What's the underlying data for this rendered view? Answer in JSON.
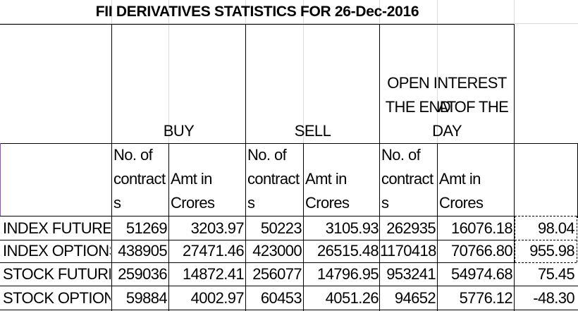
{
  "title": "FII DERIVATIVES STATISTICS FOR 26-Dec-2016",
  "groups": {
    "buy": "BUY",
    "sell": "SELL",
    "oi_line1": "OPEN INTEREST AT",
    "oi_line2": "THE END OF THE",
    "oi_line3": "DAY"
  },
  "subheaders": {
    "contracts_line1": "No. of",
    "contracts_line2": "contract",
    "contracts_line3": "s",
    "amt_line1": "Amt in",
    "amt_line2": "Crores"
  },
  "rows": [
    {
      "label": "INDEX FUTURES",
      "buy_contracts": "51269",
      "buy_amt": "3203.97",
      "sell_contracts": "50223",
      "sell_amt": "3105.93",
      "oi_contracts": "262935",
      "oi_amt": "16076.18",
      "net": "98.04"
    },
    {
      "label": "INDEX OPTIONS",
      "buy_contracts": "438905",
      "buy_amt": "27471.46",
      "sell_contracts": "423000",
      "sell_amt": "26515.48",
      "oi_contracts": "1170418",
      "oi_amt": "70766.80",
      "net": "955.98"
    },
    {
      "label": "STOCK FUTURES",
      "buy_contracts": "259036",
      "buy_amt": "14872.41",
      "sell_contracts": "256077",
      "sell_amt": "14796.95",
      "oi_contracts": "953241",
      "oi_amt": "54974.68",
      "net": "75.45"
    },
    {
      "label": "STOCK OPTIONS",
      "buy_contracts": "59884",
      "buy_amt": "4002.97",
      "sell_contracts": "60453",
      "sell_amt": "4051.26",
      "oi_contracts": "94652",
      "oi_amt": "5776.12",
      "net": "-48.30"
    }
  ]
}
